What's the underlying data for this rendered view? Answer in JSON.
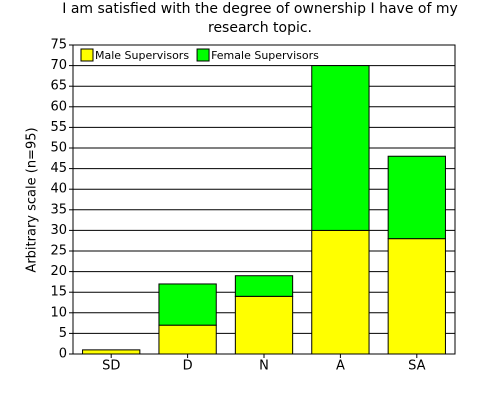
{
  "chart_data": {
    "type": "stacked_bar",
    "title": "I am satisfied with the degree of ownership I have of my research topic.",
    "y_label": "Arbitrary scale (n=95)",
    "categories": [
      "SD",
      "D",
      "N",
      "A",
      "SA"
    ],
    "series": [
      {
        "name": "Male Supervisors",
        "color": "#ffff00",
        "values": [
          1,
          7,
          14,
          30,
          28
        ]
      },
      {
        "name": "Female Supervisors",
        "color": "#00ff00",
        "values": [
          0,
          10,
          5,
          40,
          20
        ]
      }
    ],
    "ylim": [
      0,
      75
    ],
    "yticks": [
      0,
      5,
      10,
      15,
      20,
      25,
      30,
      35,
      40,
      45,
      50,
      55,
      60,
      65,
      70,
      75
    ],
    "grid": true,
    "legend": "top-left"
  }
}
